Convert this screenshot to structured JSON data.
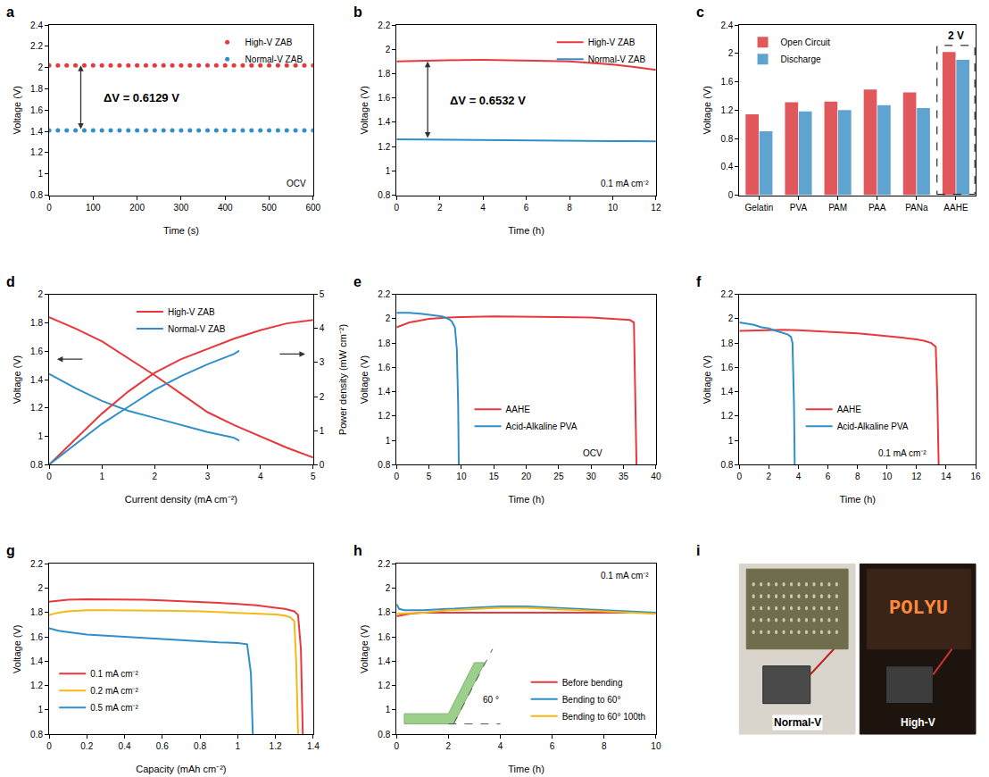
{
  "chart_data": [
    {
      "panel": "a",
      "type": "scatter",
      "marker": "circle",
      "xlabel": "Time (s)",
      "ylabel": "Voltage (V)",
      "xlim": [
        0,
        600
      ],
      "xticks": [
        0,
        100,
        200,
        300,
        400,
        500,
        600
      ],
      "ylim": [
        0.8,
        2.4
      ],
      "yticks": [
        0.8,
        1,
        1.2,
        1.4,
        1.6,
        1.8,
        2,
        2.2,
        2.4
      ],
      "legend": "top right",
      "annotations": [
        "ΔV = 0.6129 V",
        "OCV"
      ],
      "x": [
        0,
        20,
        40,
        60,
        80,
        100,
        120,
        140,
        160,
        180,
        200,
        220,
        240,
        260,
        280,
        300,
        320,
        340,
        360,
        380,
        400,
        420,
        440,
        460,
        480,
        500,
        520,
        540,
        560,
        580,
        600
      ],
      "series": [
        {
          "name": "High-V ZAB",
          "color": "#e8383d",
          "values": [
            2.02,
            2.02,
            2.02,
            2.02,
            2.02,
            2.02,
            2.02,
            2.02,
            2.02,
            2.02,
            2.02,
            2.02,
            2.02,
            2.02,
            2.02,
            2.02,
            2.02,
            2.02,
            2.02,
            2.02,
            2.02,
            2.02,
            2.02,
            2.02,
            2.02,
            2.02,
            2.02,
            2.02,
            2.02,
            2.02,
            2.02
          ]
        },
        {
          "name": "Normal-V ZAB",
          "color": "#2f8fc9",
          "values": [
            1.41,
            1.41,
            1.41,
            1.41,
            1.41,
            1.41,
            1.41,
            1.41,
            1.41,
            1.41,
            1.41,
            1.41,
            1.41,
            1.41,
            1.41,
            1.41,
            1.41,
            1.41,
            1.41,
            1.41,
            1.41,
            1.41,
            1.41,
            1.41,
            1.41,
            1.41,
            1.41,
            1.41,
            1.41,
            1.41,
            1.41
          ]
        }
      ]
    },
    {
      "panel": "b",
      "type": "line",
      "xlabel": "Time (h)",
      "ylabel": "Voltage (V)",
      "xlim": [
        0,
        12
      ],
      "xticks": [
        0,
        2,
        4,
        6,
        8,
        10,
        12
      ],
      "ylim": [
        0.8,
        2.2
      ],
      "yticks": [
        0.8,
        1,
        1.2,
        1.4,
        1.6,
        1.8,
        2,
        2.2
      ],
      "legend": "top right",
      "annotations": [
        "ΔV = 0.6532 V",
        "0.1 mA cm⁻²"
      ],
      "x": [
        0,
        1,
        2,
        3,
        4,
        5,
        6,
        7,
        8,
        9,
        10,
        11,
        12
      ],
      "series": [
        {
          "name": "High-V ZAB",
          "color": "#e8383d",
          "values": [
            1.9,
            1.905,
            1.91,
            1.912,
            1.913,
            1.912,
            1.91,
            1.905,
            1.9,
            1.89,
            1.875,
            1.855,
            1.83
          ]
        },
        {
          "name": "Normal-V ZAB",
          "color": "#2f8fc9",
          "values": [
            1.26,
            1.258,
            1.256,
            1.254,
            1.252,
            1.25,
            1.249,
            1.248,
            1.247,
            1.246,
            1.245,
            1.245,
            1.244
          ]
        }
      ]
    },
    {
      "panel": "c",
      "type": "bar",
      "ylabel": "Voltage (V)",
      "categories": [
        "Gelatin",
        "PVA",
        "PAM",
        "PAA",
        "PANa",
        "AAHE"
      ],
      "ylim": [
        0,
        2.4
      ],
      "yticks": [
        0,
        0.4,
        0.8,
        1.2,
        1.6,
        2,
        2.4
      ],
      "legend": "top left",
      "annotations": [
        "2 V"
      ],
      "series": [
        {
          "name": "Open Circuit",
          "color": "#e0575c",
          "values": [
            1.14,
            1.31,
            1.32,
            1.49,
            1.45,
            2.02
          ]
        },
        {
          "name": "Discharge",
          "color": "#5fa3d0",
          "values": [
            0.9,
            1.18,
            1.2,
            1.27,
            1.23,
            1.91
          ]
        }
      ]
    },
    {
      "panel": "d",
      "type": "line",
      "xlabel": "Current density (mA cm⁻²)",
      "ylabel": "Voltage (V)",
      "y2label": "Power density (mW cm⁻²)",
      "xlim": [
        0,
        5
      ],
      "xticks": [
        0,
        1,
        2,
        3,
        4,
        5
      ],
      "ylim": [
        0.8,
        2
      ],
      "yticks": [
        0.8,
        1,
        1.2,
        1.4,
        1.6,
        1.8,
        2
      ],
      "y2lim": [
        0,
        5
      ],
      "y2ticks": [
        0,
        1,
        2,
        3,
        4,
        5
      ],
      "legend": "top center",
      "series": [
        {
          "name": "High-V ZAB",
          "color": "#e8383d",
          "x": [
            0,
            0.5,
            1,
            1.5,
            2,
            2.5,
            3,
            3.5,
            4,
            4.5,
            5
          ],
          "values": [
            1.84,
            1.76,
            1.67,
            1.55,
            1.43,
            1.3,
            1.17,
            1.08,
            1.0,
            0.92,
            0.85
          ]
        },
        {
          "name": "Normal-V ZAB",
          "color": "#2f8fc9",
          "x": [
            0,
            0.5,
            1,
            1.5,
            2,
            2.5,
            3,
            3.5,
            3.6
          ],
          "values": [
            1.44,
            1.34,
            1.25,
            1.18,
            1.13,
            1.08,
            1.03,
            0.99,
            0.97
          ]
        },
        {
          "name": "High-V ZAB",
          "color": "#e8383d",
          "axis": "y2",
          "x": [
            0,
            0.5,
            1,
            1.5,
            2,
            2.5,
            3,
            3.5,
            4,
            4.5,
            5
          ],
          "values": [
            0,
            0.75,
            1.5,
            2.15,
            2.7,
            3.1,
            3.4,
            3.7,
            3.95,
            4.15,
            4.25
          ]
        },
        {
          "name": "Normal-V ZAB",
          "color": "#2f8fc9",
          "axis": "y2",
          "x": [
            0,
            0.5,
            1,
            1.5,
            2,
            2.5,
            3,
            3.5,
            3.6
          ],
          "values": [
            0,
            0.6,
            1.2,
            1.7,
            2.2,
            2.6,
            2.95,
            3.25,
            3.35
          ]
        }
      ]
    },
    {
      "panel": "e",
      "type": "line",
      "xlabel": "Time (h)",
      "ylabel": "Voltage (V)",
      "xlim": [
        0,
        40
      ],
      "xticks": [
        0,
        5,
        10,
        15,
        20,
        25,
        30,
        35,
        40
      ],
      "ylim": [
        0.8,
        2.2
      ],
      "yticks": [
        0.8,
        1,
        1.2,
        1.4,
        1.6,
        1.8,
        2,
        2.2
      ],
      "legend": "lower center",
      "annotations": [
        "OCV"
      ],
      "series": [
        {
          "name": "AAHE",
          "color": "#e8383d",
          "x": [
            0,
            1,
            2,
            3,
            5,
            8,
            10,
            15,
            20,
            25,
            30,
            33,
            35,
            36,
            36.6,
            36.8,
            37
          ],
          "values": [
            1.93,
            1.95,
            1.97,
            1.98,
            2.0,
            2.01,
            2.015,
            2.02,
            2.02,
            2.015,
            2.01,
            2.0,
            1.995,
            1.99,
            1.97,
            1.5,
            0.8
          ]
        },
        {
          "name": "Acid-Alkaline PVA",
          "color": "#2f8fc9",
          "x": [
            0,
            2,
            4,
            6,
            7,
            8,
            8.5,
            9,
            9.3,
            9.5,
            9.6
          ],
          "values": [
            2.05,
            2.05,
            2.04,
            2.03,
            2.02,
            2.0,
            1.98,
            1.93,
            1.75,
            1.3,
            0.8
          ]
        }
      ]
    },
    {
      "panel": "f",
      "type": "line",
      "xlabel": "Time (h)",
      "ylabel": "Voltage (V)",
      "xlim": [
        0,
        16
      ],
      "xticks": [
        0,
        2,
        4,
        6,
        8,
        10,
        12,
        14,
        16
      ],
      "ylim": [
        0.8,
        2.2
      ],
      "yticks": [
        0.8,
        1,
        1.2,
        1.4,
        1.6,
        1.8,
        2,
        2.2
      ],
      "legend": "lower center",
      "annotations": [
        "0.1 mA cm⁻²"
      ],
      "series": [
        {
          "name": "AAHE",
          "color": "#e8383d",
          "x": [
            0,
            1,
            2,
            3,
            4,
            5,
            6,
            7,
            8,
            9,
            10,
            11,
            12,
            12.5,
            13,
            13.3,
            13.4,
            13.5
          ],
          "values": [
            1.9,
            1.905,
            1.91,
            1.91,
            1.905,
            1.9,
            1.895,
            1.89,
            1.88,
            1.87,
            1.86,
            1.845,
            1.83,
            1.82,
            1.8,
            1.77,
            1.4,
            0.8
          ]
        },
        {
          "name": "Acid-Alkaline PVA",
          "color": "#2f8fc9",
          "x": [
            0,
            0.5,
            1,
            1.5,
            2,
            2.5,
            3,
            3.3,
            3.5,
            3.6,
            3.7,
            3.75
          ],
          "values": [
            1.97,
            1.96,
            1.95,
            1.93,
            1.92,
            1.9,
            1.88,
            1.87,
            1.85,
            1.8,
            1.3,
            0.8
          ]
        }
      ]
    },
    {
      "panel": "g",
      "type": "line",
      "xlabel": "Capacity (mAh cm⁻²)",
      "ylabel": "Voltage (V)",
      "xlim": [
        0,
        1.4
      ],
      "xticks": [
        0,
        0.2,
        0.4,
        0.6,
        0.8,
        1,
        1.2,
        1.4
      ],
      "ylim": [
        0.8,
        2.2
      ],
      "yticks": [
        0.8,
        1,
        1.2,
        1.4,
        1.6,
        1.8,
        2,
        2.2
      ],
      "legend": "lower left",
      "series": [
        {
          "name": "0.1 mA cm⁻²",
          "color": "#e8383d",
          "x": [
            0,
            0.05,
            0.1,
            0.2,
            0.3,
            0.4,
            0.5,
            0.6,
            0.7,
            0.8,
            0.9,
            1.0,
            1.1,
            1.2,
            1.25,
            1.3,
            1.32,
            1.335,
            1.345
          ],
          "values": [
            1.89,
            1.9,
            1.905,
            1.91,
            1.91,
            1.91,
            1.905,
            1.9,
            1.895,
            1.89,
            1.88,
            1.87,
            1.86,
            1.84,
            1.83,
            1.81,
            1.78,
            1.5,
            0.8
          ]
        },
        {
          "name": "0.2 mA cm⁻²",
          "color": "#f5b915",
          "x": [
            0,
            0.05,
            0.1,
            0.2,
            0.3,
            0.4,
            0.6,
            0.8,
            1.0,
            1.1,
            1.2,
            1.25,
            1.28,
            1.3,
            1.31,
            1.32
          ],
          "values": [
            1.78,
            1.8,
            1.81,
            1.82,
            1.82,
            1.82,
            1.815,
            1.81,
            1.8,
            1.795,
            1.785,
            1.775,
            1.76,
            1.73,
            1.4,
            0.8
          ]
        },
        {
          "name": "0.5 mA cm⁻²",
          "color": "#2f8fc9",
          "x": [
            0,
            0.05,
            0.1,
            0.2,
            0.3,
            0.4,
            0.5,
            0.6,
            0.7,
            0.8,
            0.9,
            1.0,
            1.05,
            1.07,
            1.08
          ],
          "values": [
            1.67,
            1.65,
            1.64,
            1.62,
            1.61,
            1.6,
            1.59,
            1.58,
            1.57,
            1.56,
            1.555,
            1.55,
            1.54,
            1.3,
            0.8
          ]
        }
      ]
    },
    {
      "panel": "h",
      "type": "line",
      "xlabel": "Time (h)",
      "ylabel": "Voltage (V)",
      "xlim": [
        0,
        10
      ],
      "xticks": [
        0,
        2,
        4,
        6,
        8,
        10
      ],
      "ylim": [
        0.8,
        2.2
      ],
      "yticks": [
        0.8,
        1,
        1.2,
        1.4,
        1.6,
        1.8,
        2,
        2.2
      ],
      "legend": "lower right",
      "annotations": [
        "60 °",
        "0.1 mA cm⁻²"
      ],
      "series": [
        {
          "name": "Before bending",
          "color": "#e8383d",
          "x": [
            0,
            0.2,
            0.5,
            1,
            2,
            4,
            6,
            8,
            10
          ],
          "values": [
            1.77,
            1.78,
            1.79,
            1.8,
            1.8,
            1.8,
            1.8,
            1.8,
            1.8
          ]
        },
        {
          "name": "Bending to 60°",
          "color": "#2f8fc9",
          "x": [
            0,
            0.1,
            0.3,
            1,
            2,
            3,
            4,
            5,
            6,
            7,
            8,
            9,
            10
          ],
          "values": [
            1.87,
            1.83,
            1.82,
            1.82,
            1.83,
            1.84,
            1.85,
            1.85,
            1.84,
            1.83,
            1.82,
            1.81,
            1.8
          ]
        },
        {
          "name": "Bending to 60° 100th",
          "color": "#f5b915",
          "x": [
            0,
            1,
            2,
            3,
            4,
            5,
            6,
            7,
            8,
            9,
            10
          ],
          "values": [
            1.79,
            1.8,
            1.82,
            1.83,
            1.84,
            1.84,
            1.83,
            1.82,
            1.81,
            1.8,
            1.79
          ]
        }
      ]
    },
    {
      "panel": "i",
      "type": "photo",
      "annotations": [
        "Normal-V",
        "High-V",
        "POLYU"
      ]
    }
  ]
}
